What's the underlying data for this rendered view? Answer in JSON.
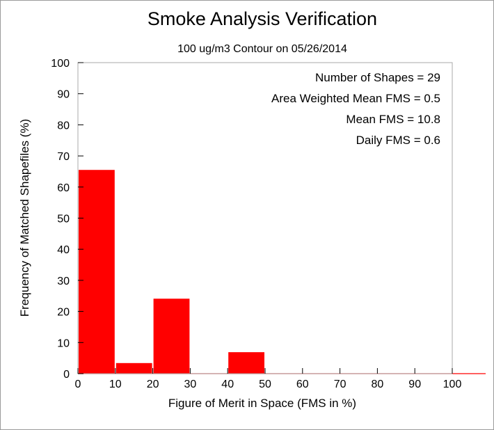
{
  "chart_data": {
    "type": "bar",
    "title": "Smoke Analysis Verification",
    "subtitle": "100 ug/m3 Contour on 05/26/2014",
    "xlabel": "Figure of Merit in Space (FMS in %)",
    "ylabel": "Frequency of Matched Shapefiles (%)",
    "xlim": [
      0,
      110
    ],
    "ylim": [
      0,
      100
    ],
    "xticks": [
      "0",
      "10",
      "20",
      "30",
      "40",
      "50",
      "60",
      "70",
      "80",
      "90",
      "100"
    ],
    "yticks": [
      "0",
      "10",
      "20",
      "30",
      "40",
      "50",
      "60",
      "70",
      "80",
      "90",
      "100"
    ],
    "bins": [
      {
        "start": 0,
        "end": 10,
        "value": 65.5
      },
      {
        "start": 10,
        "end": 20,
        "value": 3.4
      },
      {
        "start": 20,
        "end": 30,
        "value": 24.1
      },
      {
        "start": 30,
        "end": 40,
        "value": 0
      },
      {
        "start": 40,
        "end": 50,
        "value": 6.9
      },
      {
        "start": 50,
        "end": 60,
        "value": 0
      },
      {
        "start": 60,
        "end": 70,
        "value": 0
      },
      {
        "start": 70,
        "end": 80,
        "value": 0
      },
      {
        "start": 80,
        "end": 90,
        "value": 0
      },
      {
        "start": 90,
        "end": 100,
        "value": 0
      },
      {
        "start": 100,
        "end": 110,
        "value": 0
      }
    ],
    "bar_color": "#ff0000",
    "grid": false,
    "annotations": [
      "Number of Shapes = 29",
      "Area Weighted Mean FMS = 0.5",
      "Mean FMS = 10.8",
      "Daily FMS = 0.6"
    ],
    "annotation_placement": "top-right"
  }
}
